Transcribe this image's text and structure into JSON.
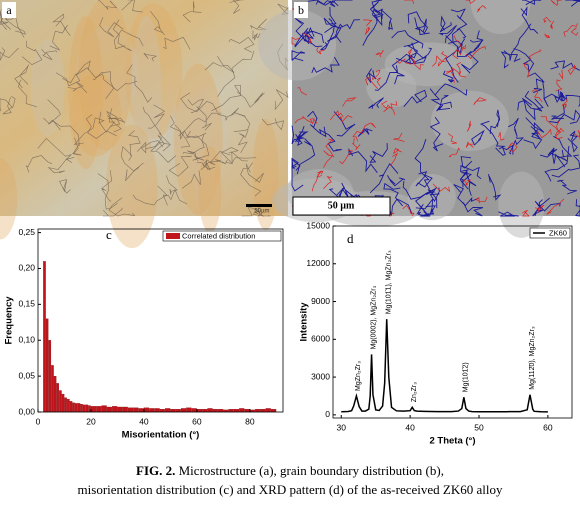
{
  "panels": {
    "a": {
      "label": "a",
      "scale_bar": "50µm"
    },
    "b": {
      "label": "b",
      "scale_bar": "50 µm"
    }
  },
  "chart_data": [
    {
      "type": "histogram",
      "label": "c",
      "x_label": "Misorientation (°)",
      "y_label": "Frequency",
      "bins": [
        2,
        3,
        4,
        5,
        6,
        7,
        8,
        9,
        10,
        11,
        12,
        13,
        14,
        15,
        16,
        17,
        18,
        19,
        20,
        22,
        24,
        26,
        28,
        30,
        32,
        34,
        36,
        38,
        40,
        42,
        44,
        46,
        48,
        50,
        52,
        54,
        56,
        58,
        60,
        62,
        64,
        66,
        68,
        70,
        72,
        74,
        76,
        78,
        80,
        82,
        84,
        86,
        88,
        90
      ],
      "series": [
        {
          "name": "Correlated distribution",
          "color": "#c0141c",
          "values": [
            0.21,
            0.13,
            0.1,
            0.065,
            0.05,
            0.04,
            0.03,
            0.025,
            0.02,
            0.018,
            0.015,
            0.013,
            0.012,
            0.012,
            0.011,
            0.01,
            0.01,
            0.009,
            0.008,
            0.008,
            0.009,
            0.007,
            0.008,
            0.007,
            0.007,
            0.006,
            0.006,
            0.005,
            0.006,
            0.005,
            0.005,
            0.004,
            0.005,
            0.004,
            0.004,
            0.005,
            0.006,
            0.005,
            0.004,
            0.004,
            0.005,
            0.004,
            0.004,
            0.003,
            0.004,
            0.004,
            0.005,
            0.004,
            0.003,
            0.004,
            0.004,
            0.005,
            0.004
          ]
        }
      ],
      "xlim": [
        0,
        92.5
      ],
      "xticks": [
        0,
        20,
        40,
        60,
        80
      ],
      "ylim": [
        0,
        0.255
      ],
      "yticks": [
        {
          "value": 0,
          "label": "0,00"
        },
        {
          "value": 0.05,
          "label": "0,05"
        },
        {
          "value": 0.1,
          "label": "0,10"
        },
        {
          "value": 0.15,
          "label": "0,15"
        },
        {
          "value": 0.2,
          "label": "0,20"
        },
        {
          "value": 0.25,
          "label": "0,25"
        }
      ],
      "legend": "top-right"
    },
    {
      "type": "line",
      "label": "d",
      "x_label": "2 Theta (°)",
      "y_label": "Intensity",
      "x": [
        30,
        30.5,
        31,
        31.5,
        31.8,
        32.2,
        32.6,
        33,
        33.5,
        34,
        34.2,
        34.4,
        34.6,
        35,
        35.5,
        36,
        36.3,
        36.6,
        36.9,
        37.3,
        38,
        39,
        40,
        40.3,
        40.6,
        41,
        42,
        43,
        44,
        45,
        46,
        47,
        47.5,
        47.8,
        48.1,
        48.5,
        49,
        50,
        51,
        52,
        53,
        54,
        55,
        56,
        57,
        57.4,
        57.8,
        58,
        59,
        60
      ],
      "series": [
        {
          "name": "ZK60",
          "color": "#000000",
          "values": [
            250,
            260,
            270,
            330,
            700,
            1500,
            650,
            300,
            300,
            450,
            1500,
            4800,
            1600,
            400,
            350,
            700,
            2500,
            7600,
            3000,
            600,
            320,
            300,
            330,
            600,
            340,
            300,
            280,
            270,
            260,
            260,
            260,
            300,
            500,
            1400,
            500,
            300,
            260,
            250,
            250,
            250,
            250,
            250,
            260,
            260,
            400,
            1600,
            450,
            280,
            250,
            240
          ]
        }
      ],
      "xlim": [
        28.8,
        63.5
      ],
      "xticks": [
        30,
        40,
        50,
        60
      ],
      "ylim": [
        -250,
        15000
      ],
      "yticks": [
        0,
        3000,
        6000,
        9000,
        12000,
        15000
      ],
      "annotations": [
        {
          "x": 32.2,
          "text": "MgZn₂Zr₃"
        },
        {
          "x": 34.4,
          "text": "Mg(0002), MgZn₂Zr₃"
        },
        {
          "x": 36.6,
          "text": "Mg(101̄1), MgZn₂Zr₃"
        },
        {
          "x": 40.3,
          "text": "Zn₂Zr₃"
        },
        {
          "x": 47.8,
          "text": "Mg(101̄2)"
        },
        {
          "x": 57.4,
          "text": "Mg(112̄0), MgZn₂Zr₃"
        }
      ],
      "legend": "top-right"
    }
  ],
  "caption": {
    "fig_label": "FIG. 2.",
    "lines": [
      "Microstructure (a), grain boundary distribution (b),",
      "misorientation distribution (c) and XRD pattern (d) of the as-received ZK60 alloy"
    ]
  }
}
